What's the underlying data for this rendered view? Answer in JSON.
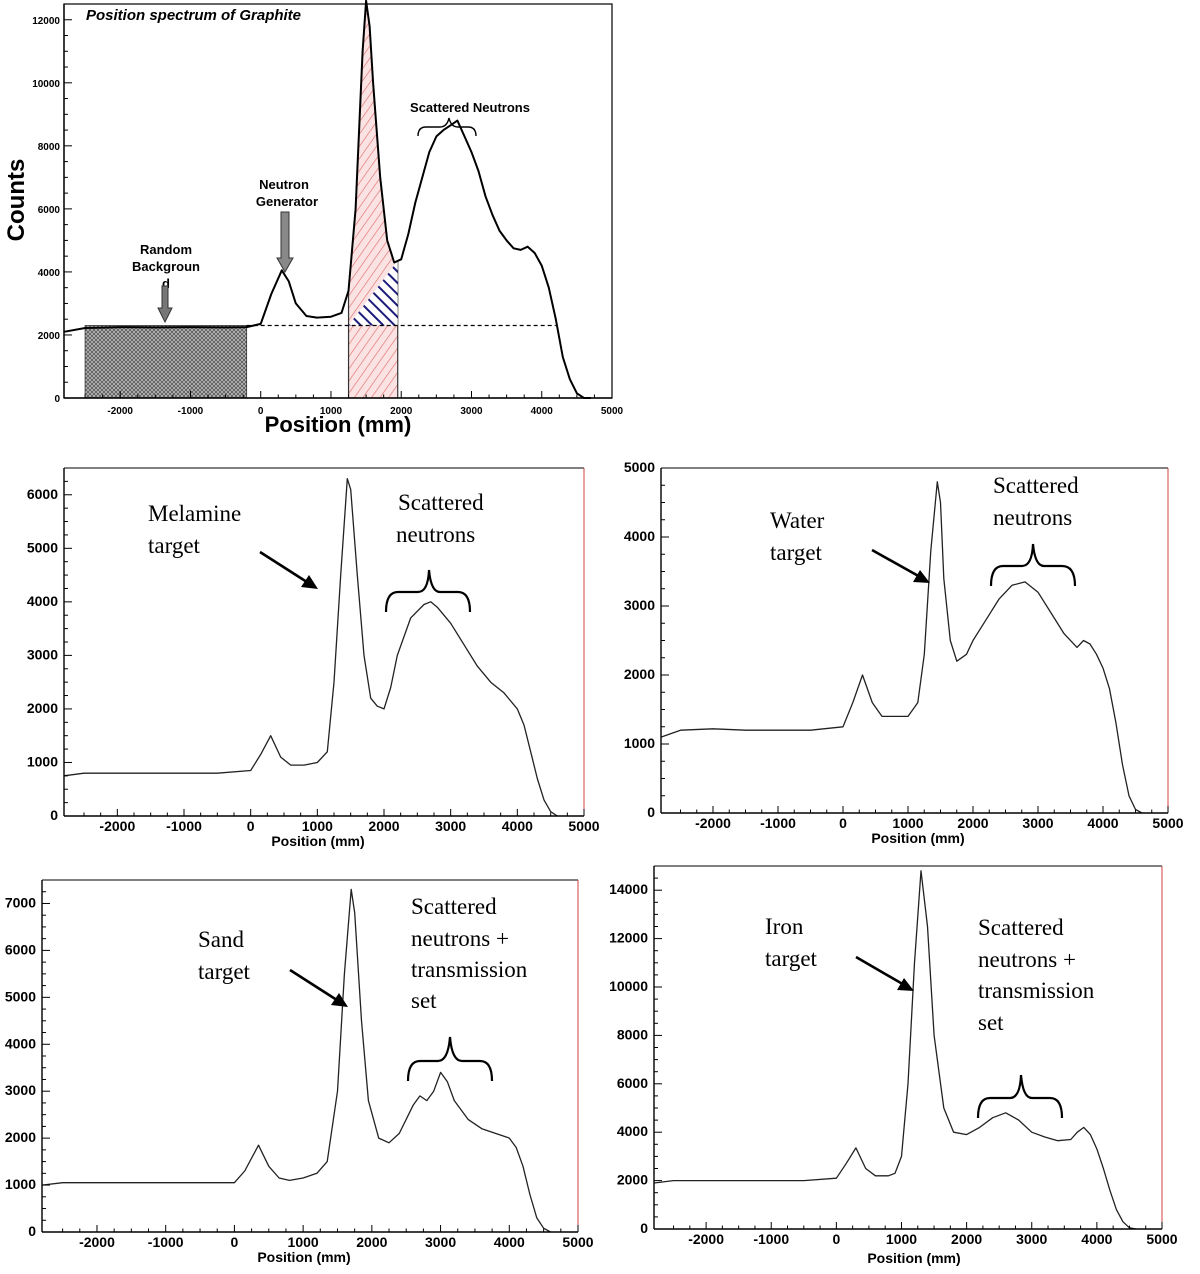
{
  "chart_data": [
    {
      "type": "line",
      "title": "Position spectrum of Graphite",
      "xlabel": "Position (mm)",
      "ylabel": "Counts",
      "xlim": [
        -2800,
        5000
      ],
      "ylim": [
        0,
        12500
      ],
      "xticks": [
        "-2000",
        "-1000",
        "0",
        "1000",
        "2000",
        "3000",
        "4000",
        "5000"
      ],
      "yticks": [
        "0",
        "2000",
        "4000",
        "6000",
        "8000",
        "10000",
        "12000"
      ],
      "baseline": 2300,
      "regions": [
        {
          "label": "random-background",
          "x": [
            -2500,
            -200
          ],
          "pattern": "gray-crosshatch"
        },
        {
          "label": "target-window",
          "x": [
            1250,
            1950
          ],
          "pattern": "red-hatch"
        },
        {
          "label": "scatter-under-peak",
          "x": [
            1250,
            1950
          ],
          "pattern": "blue-hatch"
        }
      ],
      "x": [
        -2800,
        -2500,
        -2000,
        -1500,
        -1000,
        -500,
        -200,
        0,
        150,
        300,
        400,
        500,
        650,
        800,
        1000,
        1150,
        1250,
        1350,
        1450,
        1500,
        1550,
        1600,
        1700,
        1800,
        1900,
        2000,
        2100,
        2200,
        2300,
        2400,
        2500,
        2600,
        2700,
        2800,
        2900,
        3000,
        3100,
        3200,
        3300,
        3400,
        3500,
        3600,
        3700,
        3800,
        3900,
        4000,
        4100,
        4200,
        4300,
        4400,
        4500,
        4600,
        4700
      ],
      "values": [
        2100,
        2220,
        2250,
        2240,
        2250,
        2240,
        2250,
        2350,
        3300,
        4050,
        3700,
        3000,
        2600,
        2550,
        2580,
        2700,
        3400,
        6000,
        11000,
        12600,
        11800,
        10000,
        7000,
        5000,
        4300,
        4400,
        5200,
        6200,
        7000,
        7800,
        8300,
        8500,
        8650,
        8800,
        8300,
        7800,
        7200,
        6400,
        5800,
        5300,
        5000,
        4750,
        4700,
        4800,
        4600,
        4200,
        3500,
        2500,
        1300,
        600,
        150,
        0,
        0
      ],
      "annotations": [
        {
          "text": "Random Backgroun d",
          "lines": [
            "Random",
            "Backgroun",
            "d"
          ]
        },
        {
          "text": "Neutron Generator",
          "lines": [
            "Neutron",
            "Generator"
          ]
        },
        {
          "text": "Scattered Neutrons",
          "lines": [
            "Scattered Neutrons"
          ]
        }
      ]
    },
    {
      "type": "line",
      "title": "",
      "xlabel": "Position (mm)",
      "ylabel": "",
      "xlim": [
        -2800,
        5000
      ],
      "ylim": [
        0,
        6500
      ],
      "xticks": [
        "-2000",
        "-1000",
        "0",
        "1000",
        "2000",
        "3000",
        "4000",
        "5000"
      ],
      "yticks": [
        "0",
        "1000",
        "2000",
        "3000",
        "4000",
        "5000",
        "6000"
      ],
      "x": [
        -2800,
        -2500,
        -2000,
        -1500,
        -1000,
        -500,
        0,
        150,
        300,
        450,
        600,
        800,
        1000,
        1150,
        1250,
        1350,
        1450,
        1500,
        1600,
        1700,
        1800,
        1900,
        2000,
        2100,
        2200,
        2400,
        2600,
        2700,
        2800,
        3000,
        3200,
        3400,
        3600,
        3800,
        4000,
        4100,
        4200,
        4300,
        4400,
        4500,
        4600
      ],
      "values": [
        750,
        800,
        800,
        800,
        800,
        800,
        850,
        1150,
        1500,
        1100,
        950,
        950,
        1000,
        1200,
        2500,
        4500,
        6300,
        6100,
        4500,
        3000,
        2200,
        2050,
        2000,
        2400,
        3000,
        3700,
        3950,
        4000,
        3900,
        3600,
        3200,
        2800,
        2500,
        2300,
        2000,
        1700,
        1200,
        700,
        300,
        80,
        0
      ],
      "annotations": [
        {
          "text": "Melamine target",
          "lines": [
            "Melamine",
            "target"
          ]
        },
        {
          "text": "Scattered neutrons",
          "lines": [
            "Scattered",
            "neutrons"
          ]
        }
      ]
    },
    {
      "type": "line",
      "title": "",
      "xlabel": "Position (mm)",
      "ylabel": "",
      "xlim": [
        -2800,
        5000
      ],
      "ylim": [
        0,
        5000
      ],
      "xticks": [
        "-2000",
        "-1000",
        "0",
        "1000",
        "2000",
        "3000",
        "4000",
        "5000"
      ],
      "yticks": [
        "0",
        "1000",
        "2000",
        "3000",
        "4000",
        "5000"
      ],
      "x": [
        -2800,
        -2500,
        -2000,
        -1500,
        -1000,
        -500,
        0,
        150,
        300,
        450,
        600,
        800,
        1000,
        1150,
        1250,
        1350,
        1450,
        1500,
        1550,
        1650,
        1750,
        1900,
        2000,
        2200,
        2400,
        2600,
        2800,
        3000,
        3200,
        3400,
        3600,
        3700,
        3800,
        3900,
        4000,
        4100,
        4200,
        4300,
        4400,
        4500,
        4600
      ],
      "values": [
        1100,
        1200,
        1220,
        1200,
        1200,
        1200,
        1250,
        1600,
        2000,
        1600,
        1400,
        1400,
        1400,
        1600,
        2300,
        3800,
        4800,
        4500,
        3400,
        2500,
        2200,
        2300,
        2500,
        2800,
        3100,
        3300,
        3350,
        3200,
        2900,
        2600,
        2400,
        2500,
        2450,
        2300,
        2100,
        1800,
        1300,
        700,
        250,
        50,
        0
      ],
      "annotations": [
        {
          "text": "Water target",
          "lines": [
            "Water",
            "target"
          ]
        },
        {
          "text": "Scattered neutrons",
          "lines": [
            "Scattered",
            "neutrons"
          ]
        }
      ]
    },
    {
      "type": "line",
      "title": "",
      "xlabel": "Position (mm)",
      "ylabel": "",
      "xlim": [
        -2800,
        5000
      ],
      "ylim": [
        0,
        7500
      ],
      "xticks": [
        "-2000",
        "-1000",
        "0",
        "1000",
        "2000",
        "3000",
        "4000",
        "5000"
      ],
      "yticks": [
        "0",
        "1000",
        "2000",
        "3000",
        "4000",
        "5000",
        "6000",
        "7000"
      ],
      "x": [
        -2800,
        -2500,
        -2000,
        -1500,
        -1000,
        -500,
        0,
        150,
        350,
        500,
        650,
        800,
        1000,
        1200,
        1350,
        1500,
        1600,
        1700,
        1750,
        1850,
        1950,
        2100,
        2250,
        2400,
        2600,
        2700,
        2800,
        2900,
        3000,
        3100,
        3200,
        3400,
        3600,
        3800,
        4000,
        4100,
        4200,
        4300,
        4400,
        4500,
        4600
      ],
      "values": [
        1000,
        1050,
        1050,
        1050,
        1050,
        1050,
        1050,
        1300,
        1850,
        1400,
        1150,
        1100,
        1150,
        1250,
        1500,
        3000,
        5500,
        7300,
        6800,
        4500,
        2800,
        2000,
        1900,
        2100,
        2700,
        2900,
        2800,
        3000,
        3400,
        3200,
        2800,
        2400,
        2200,
        2100,
        2000,
        1800,
        1400,
        800,
        300,
        80,
        0
      ],
      "annotations": [
        {
          "text": "Sand target",
          "lines": [
            "Sand",
            "target"
          ]
        },
        {
          "text": "Scattered neutrons + transmission set",
          "lines": [
            "Scattered",
            "neutrons +",
            "transmission",
            "set"
          ]
        }
      ]
    },
    {
      "type": "line",
      "title": "",
      "xlabel": "Position (mm)",
      "ylabel": "",
      "xlim": [
        -2800,
        5000
      ],
      "ylim": [
        0,
        15000
      ],
      "xticks": [
        "-2000",
        "-1000",
        "0",
        "1000",
        "2000",
        "3000",
        "4000",
        "5000"
      ],
      "yticks": [
        "0",
        "2000",
        "4000",
        "6000",
        "8000",
        "10000",
        "12000",
        "14000"
      ],
      "x": [
        -2800,
        -2500,
        -2000,
        -1500,
        -1000,
        -500,
        0,
        150,
        300,
        450,
        600,
        800,
        900,
        1000,
        1100,
        1200,
        1300,
        1400,
        1500,
        1650,
        1800,
        2000,
        2200,
        2400,
        2600,
        2800,
        3000,
        3200,
        3400,
        3600,
        3700,
        3800,
        3900,
        4000,
        4100,
        4200,
        4300,
        4400,
        4500,
        4600
      ],
      "values": [
        1900,
        2000,
        2000,
        2000,
        2000,
        2000,
        2100,
        2700,
        3350,
        2500,
        2200,
        2200,
        2300,
        3000,
        6000,
        11000,
        14800,
        12500,
        8000,
        5000,
        4000,
        3900,
        4200,
        4600,
        4800,
        4500,
        4000,
        3800,
        3650,
        3700,
        4000,
        4200,
        3900,
        3300,
        2500,
        1600,
        800,
        300,
        50,
        0
      ],
      "annotations": [
        {
          "text": "Iron target",
          "lines": [
            "Iron",
            "target"
          ]
        },
        {
          "text": "Scattered neutrons + transmission set",
          "lines": [
            "Scattered",
            "neutrons +",
            "transmission",
            "set"
          ]
        }
      ]
    }
  ]
}
